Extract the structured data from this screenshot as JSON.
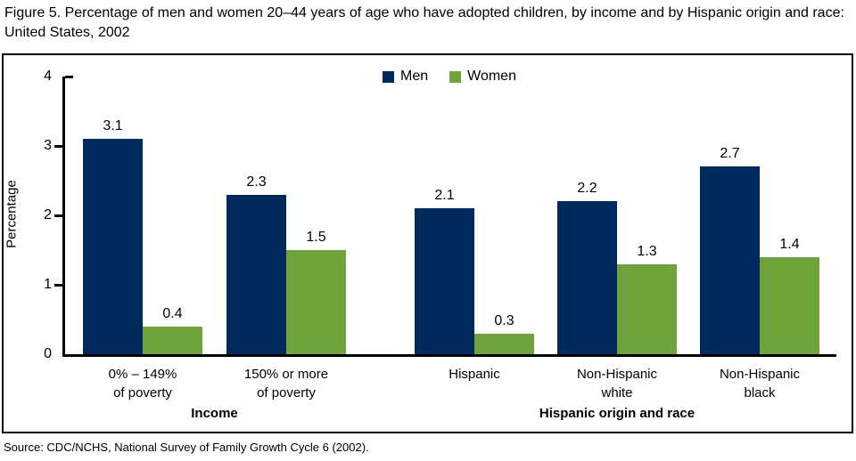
{
  "figure_title": "Figure 5. Percentage of men and women 20–44 years of age who have adopted children, by income and by Hispanic origin and race: United States, 2002",
  "source_note": "Source: CDC/NCHS, National Survey of Family Growth Cycle 6 (2002).",
  "colors": {
    "men": "#002A5E",
    "women": "#6FA43C",
    "axis": "#000000",
    "frame_border": "#000000",
    "background": "#FFFFFF"
  },
  "chart_data": {
    "type": "bar",
    "title": "Figure 5. Percentage of men and women 20–44 years of age who have adopted children, by income and by Hispanic origin and race: United States, 2002",
    "ylabel": "Percentage",
    "xlabel": "",
    "ylim": [
      0,
      4
    ],
    "yticks": [
      0,
      1,
      2,
      3,
      4
    ],
    "grid": false,
    "legend_position": "top-center",
    "categories": [
      "0% – 149%\nof poverty",
      "150% or more\nof poverty",
      "Hispanic",
      "Non-Hispanic\nwhite",
      "Non-Hispanic\nblack"
    ],
    "sections": [
      {
        "label": "Income",
        "span": [
          0,
          1
        ]
      },
      {
        "label": "Hispanic origin and race",
        "span": [
          2,
          4
        ]
      }
    ],
    "series": [
      {
        "name": "Men",
        "color": "#002A5E",
        "values": [
          3.1,
          2.3,
          2.1,
          2.2,
          2.7
        ]
      },
      {
        "name": "Women",
        "color": "#6FA43C",
        "values": [
          0.4,
          1.5,
          0.3,
          1.3,
          1.4
        ]
      }
    ]
  }
}
